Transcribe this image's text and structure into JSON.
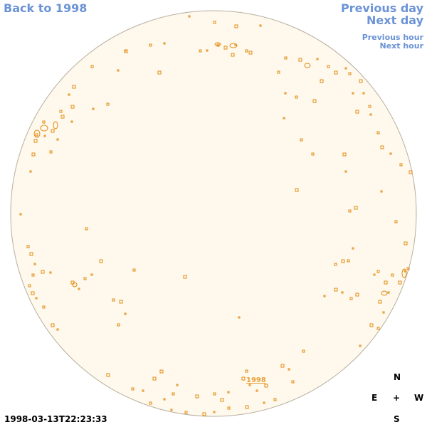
{
  "nav": {
    "back_label": "Back to 1998",
    "prev_day": "Previous day",
    "next_day": "Next day",
    "prev_hour": "Previous hour",
    "next_hour": "Next hour"
  },
  "disc": {
    "year_link": "1998"
  },
  "compass": {
    "n": "N",
    "s": "S",
    "e": "E",
    "w": "W",
    "center": "+"
  },
  "timestamp": "1998-03-13T22:23:33",
  "colors": {
    "link": "#6b93d6",
    "disc_fill": "#fff9ed",
    "disc_stroke": "#b7ae9e",
    "region": "#e08a10",
    "year_link": "#e8a23c"
  }
}
